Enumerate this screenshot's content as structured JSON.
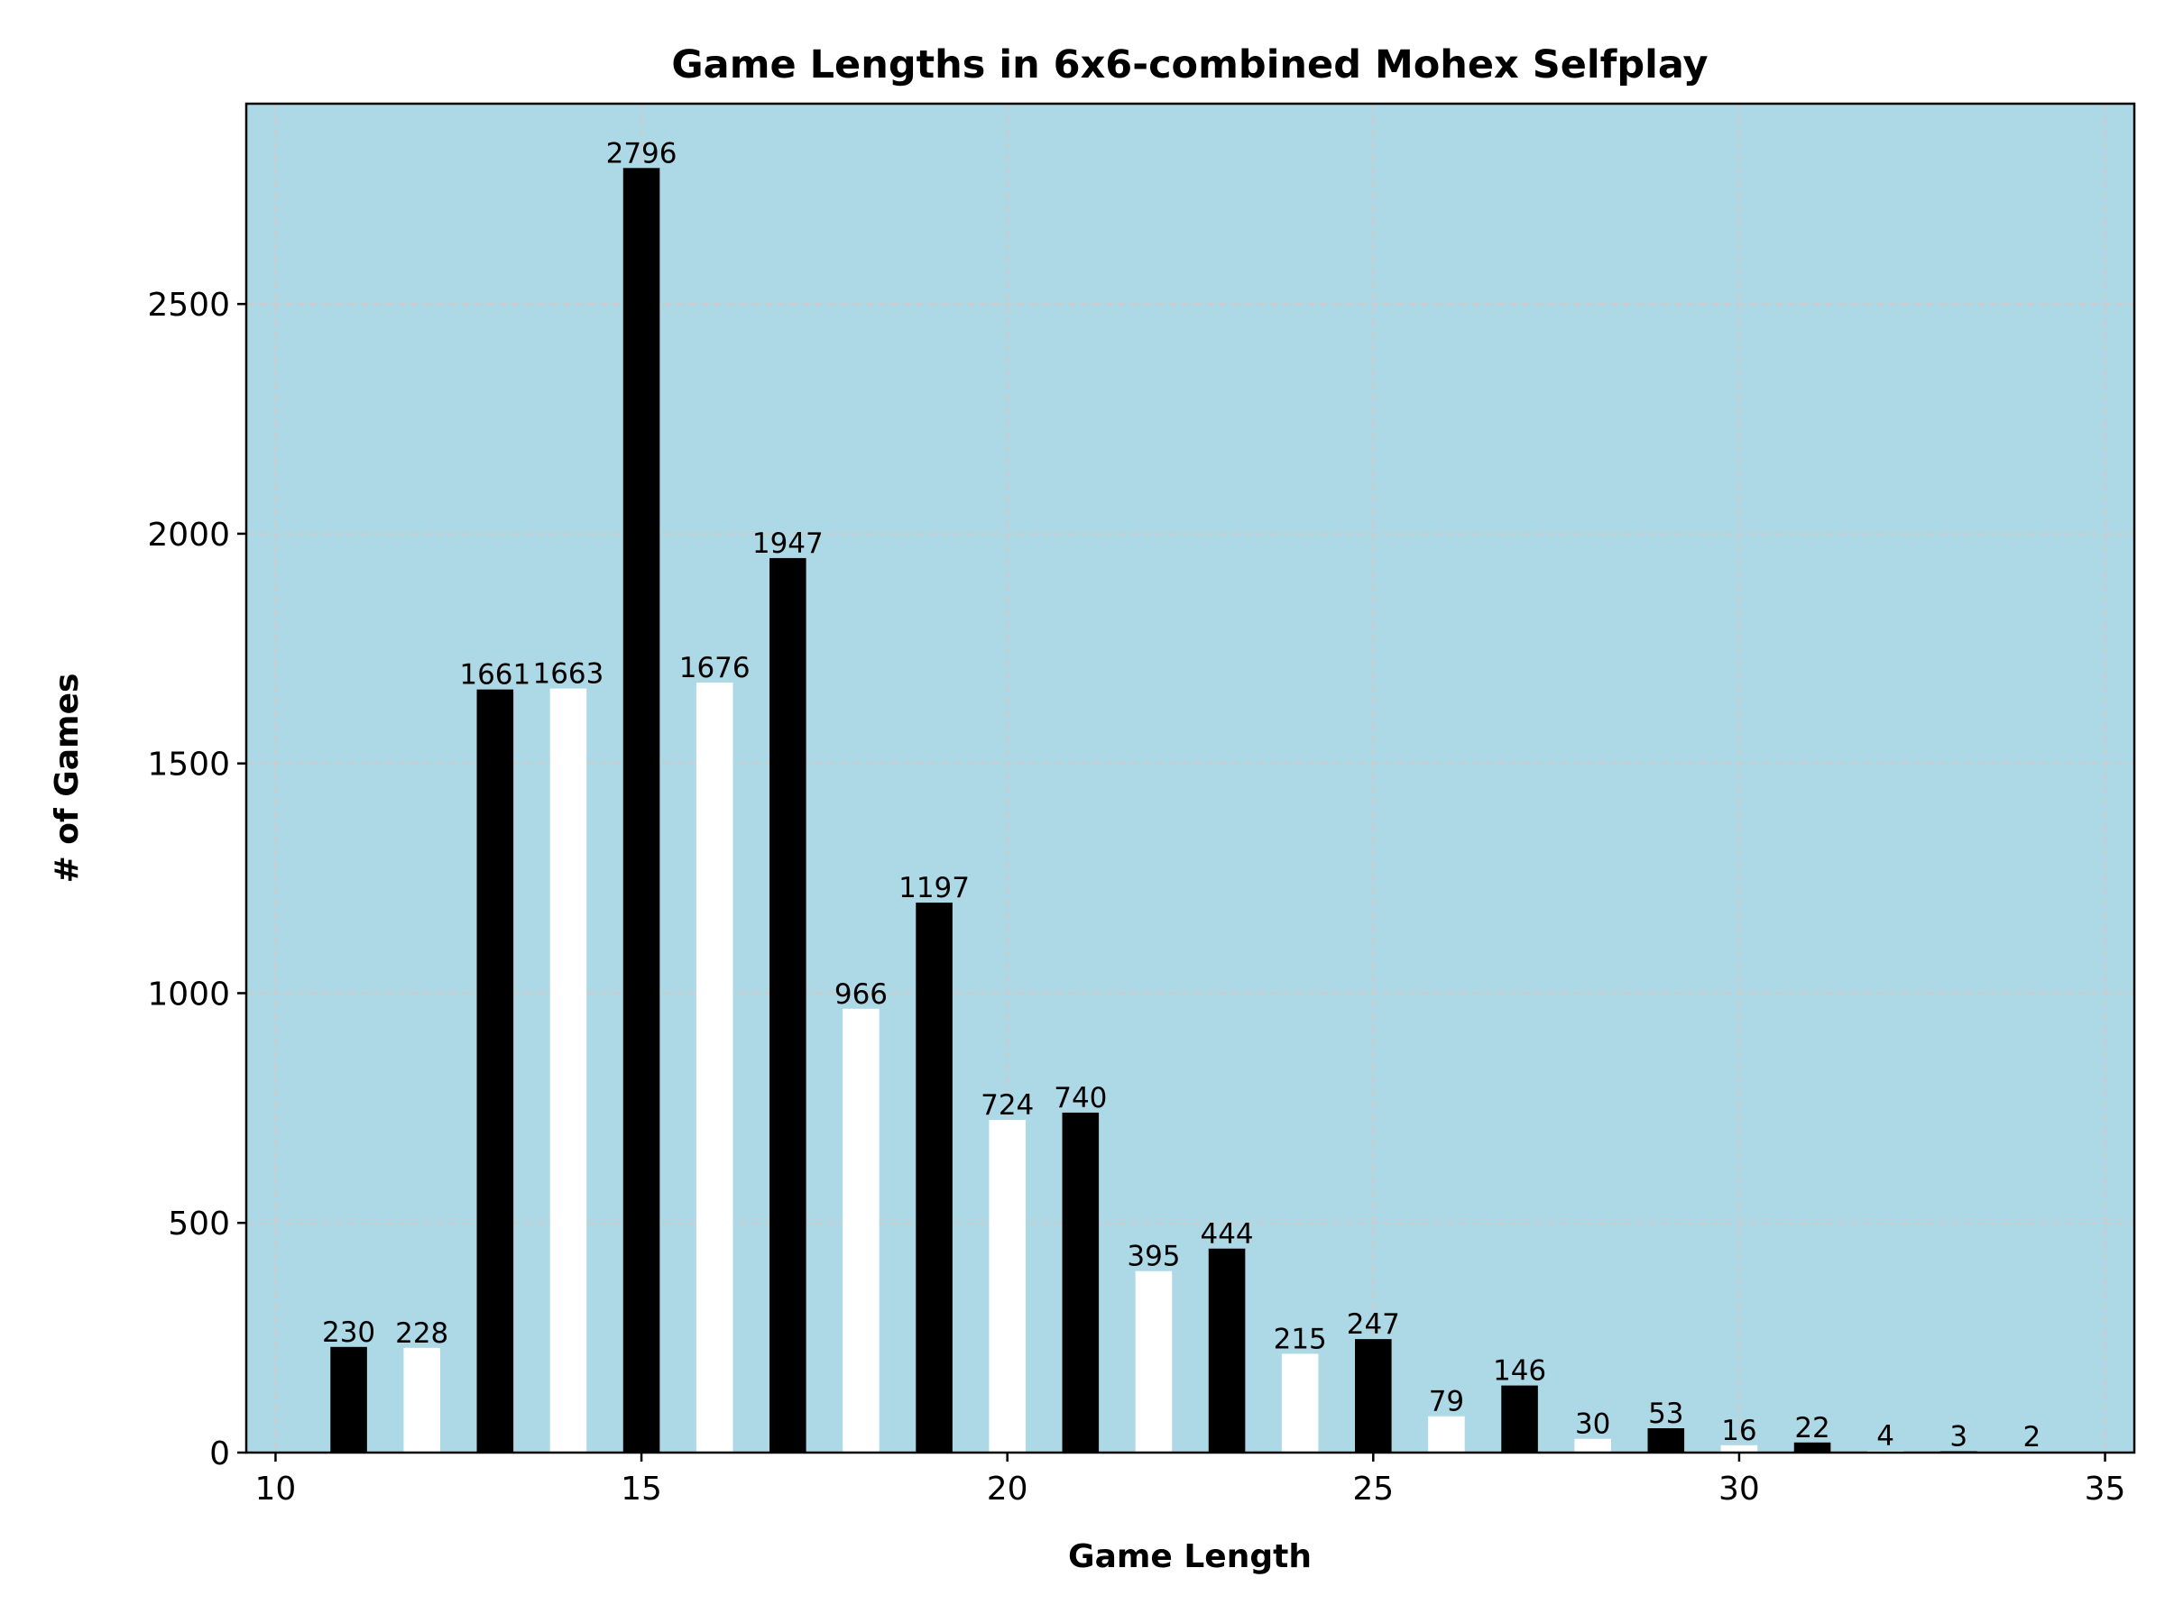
{
  "chart_data": {
    "type": "bar",
    "title": "Game Lengths in 6x6-combined Mohex Selfplay",
    "xlabel": "Game Length",
    "ylabel": "# of Games",
    "x": [
      11,
      12,
      13,
      14,
      15,
      16,
      17,
      18,
      19,
      20,
      21,
      22,
      23,
      24,
      25,
      26,
      27,
      28,
      29,
      30,
      31,
      32,
      33,
      34
    ],
    "values": [
      230,
      228,
      1661,
      1663,
      2796,
      1676,
      1947,
      966,
      1197,
      724,
      740,
      395,
      444,
      215,
      247,
      79,
      146,
      30,
      53,
      16,
      22,
      4,
      3,
      2
    ],
    "bar_colors": [
      "#000000",
      "#ffffff",
      "#000000",
      "#ffffff",
      "#000000",
      "#ffffff",
      "#000000",
      "#ffffff",
      "#000000",
      "#ffffff",
      "#000000",
      "#ffffff",
      "#000000",
      "#ffffff",
      "#000000",
      "#ffffff",
      "#000000",
      "#ffffff",
      "#000000",
      "#ffffff",
      "#000000",
      "#ffffff",
      "#000000",
      "#ffffff"
    ],
    "xlim": [
      9.6,
      35.4
    ],
    "ylim": [
      0,
      2936
    ],
    "xticks": [
      10,
      15,
      20,
      25,
      30,
      35
    ],
    "yticks": [
      0,
      500,
      1000,
      1500,
      2000,
      2500
    ],
    "grid": true,
    "plot_background": "#add8e6",
    "grid_color": "#cccccc"
  }
}
